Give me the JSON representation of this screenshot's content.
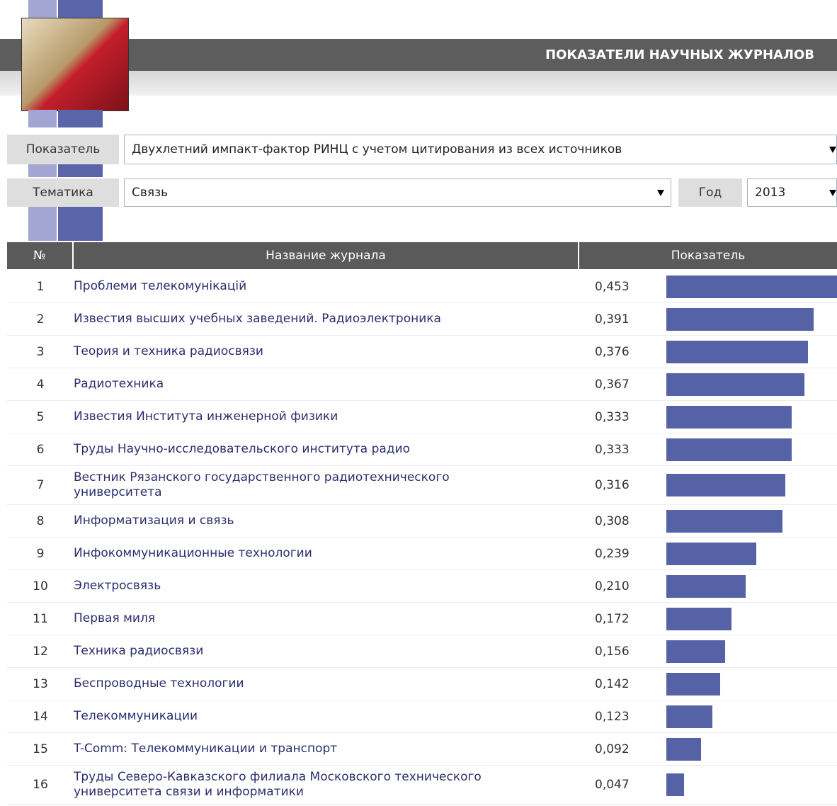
{
  "header": {
    "title": "ПОКАЗАТЕЛИ НАУЧНЫХ ЖУРНАЛОВ"
  },
  "filters": {
    "indicator": {
      "label": "Показатель",
      "value": "Двухлетний импакт-фактор РИНЦ с учетом цитирования из всех источников"
    },
    "topic": {
      "label": "Тематика",
      "value": "Связь"
    },
    "year": {
      "label": "Год",
      "value": "2013"
    }
  },
  "table": {
    "columns": [
      "№",
      "Название журнала",
      "Показатель"
    ],
    "rows": [
      {
        "no": 1,
        "name": "Проблеми телекомунікацій",
        "value": 0.453,
        "label": "0,453"
      },
      {
        "no": 2,
        "name": "Известия высших учебных заведений. Радиоэлектроника",
        "value": 0.391,
        "label": "0,391"
      },
      {
        "no": 3,
        "name": "Теория и техника радиосвязи",
        "value": 0.376,
        "label": "0,376"
      },
      {
        "no": 4,
        "name": "Радиотехника",
        "value": 0.367,
        "label": "0,367"
      },
      {
        "no": 5,
        "name": "Известия Института инженерной физики",
        "value": 0.333,
        "label": "0,333"
      },
      {
        "no": 6,
        "name": "Труды Научно-исследовательского института радио",
        "value": 0.333,
        "label": "0,333"
      },
      {
        "no": 7,
        "name": "Вестник Рязанского государственного радиотехнического университета",
        "value": 0.316,
        "label": "0,316"
      },
      {
        "no": 8,
        "name": "Информатизация и связь",
        "value": 0.308,
        "label": "0,308"
      },
      {
        "no": 9,
        "name": "Инфокоммуникационные технологии",
        "value": 0.239,
        "label": "0,239"
      },
      {
        "no": 10,
        "name": "Электросвязь",
        "value": 0.21,
        "label": "0,210"
      },
      {
        "no": 11,
        "name": "Первая миля",
        "value": 0.172,
        "label": "0,172"
      },
      {
        "no": 12,
        "name": "Техника радиосвязи",
        "value": 0.156,
        "label": "0,156"
      },
      {
        "no": 13,
        "name": "Беспроводные технологии",
        "value": 0.142,
        "label": "0,142"
      },
      {
        "no": 14,
        "name": "Телекоммуникации",
        "value": 0.123,
        "label": "0,123"
      },
      {
        "no": 15,
        "name": "T-Comm: Телекоммуникации и транспорт",
        "value": 0.092,
        "label": "0,092"
      },
      {
        "no": 16,
        "name": "Труды Северо-Кавказского филиала Московского технического университета связи и информатики",
        "value": 0.047,
        "label": "0,047"
      }
    ]
  }
}
